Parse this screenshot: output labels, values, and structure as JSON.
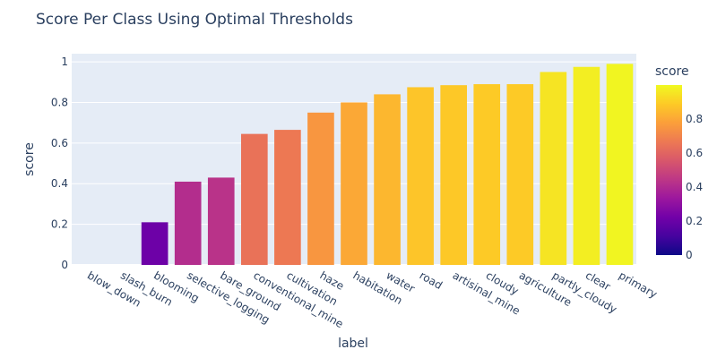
{
  "chart_data": {
    "type": "bar",
    "title": "Score Per Class Using Optimal Thresholds",
    "xlabel": "label",
    "ylabel": "score",
    "ylim": [
      0,
      1.04
    ],
    "yticks": [
      0,
      0.2,
      0.4,
      0.6,
      0.8,
      1
    ],
    "ytick_labels": [
      "0",
      "0.2",
      "0.4",
      "0.6",
      "0.8",
      "1"
    ],
    "grid": true,
    "legend": "none",
    "categories": [
      "blow_down",
      "slash_burn",
      "blooming",
      "selective_logging",
      "bare_ground",
      "conventional_mine",
      "cultivation",
      "haze",
      "habitation",
      "water",
      "road",
      "artisinal_mine",
      "cloudy",
      "agriculture",
      "partly_cloudy",
      "clear",
      "primary"
    ],
    "values": [
      0,
      0,
      0.21,
      0.41,
      0.43,
      0.645,
      0.665,
      0.75,
      0.8,
      0.84,
      0.875,
      0.885,
      0.89,
      0.89,
      0.95,
      0.975,
      0.99
    ],
    "colorbar": {
      "title": "score",
      "range": [
        0,
        1
      ],
      "ticks": [
        0,
        0.2,
        0.4,
        0.6,
        0.8
      ],
      "tick_labels": [
        "0",
        "0.2",
        "0.4",
        "0.6",
        "0.8"
      ],
      "colorscale": [
        "#0d0887",
        "#46039f",
        "#7201a8",
        "#9c179e",
        "#bd3786",
        "#d8576b",
        "#ed7953",
        "#fb9f3a",
        "#fdca26",
        "#f0f921"
      ]
    },
    "plot_background": "#e5ecf6"
  }
}
